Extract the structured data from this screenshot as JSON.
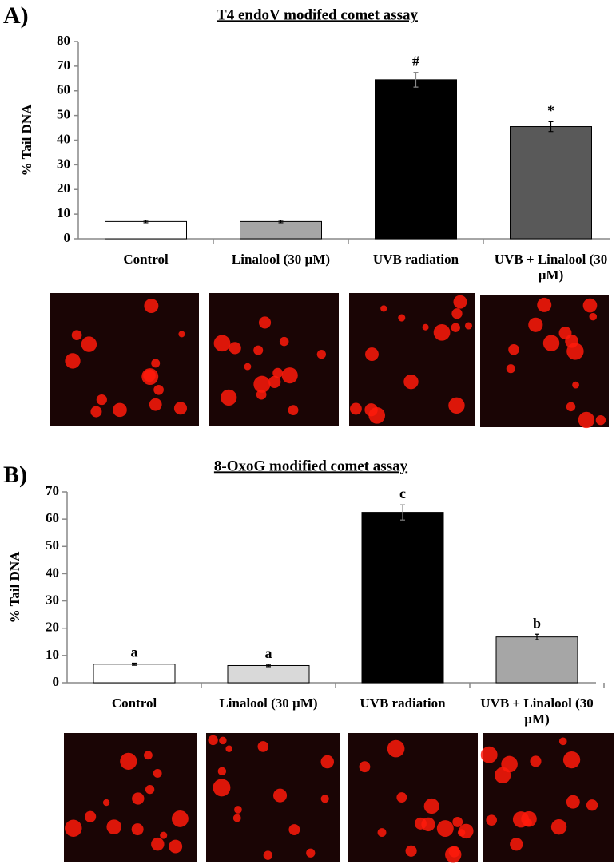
{
  "chart_data": [
    {
      "type": "bar",
      "panel_label": "A)",
      "title": "T4 endoV modifed comet assay",
      "ylabel": "% Tail DNA",
      "categories": [
        "Control",
        "Linalool (30 µM)",
        "UVB radiation",
        "UVB + Linalool (30 µM)"
      ],
      "values": [
        7,
        7,
        64.5,
        45.5
      ],
      "errors": [
        0.5,
        0.5,
        3,
        2
      ],
      "bar_annotations": [
        null,
        null,
        "#",
        "*"
      ],
      "colors": [
        "#ffffff",
        "#a6a6a6",
        "#000000",
        "#595959"
      ],
      "ylim": [
        0,
        80
      ],
      "yticks": [
        0,
        10,
        20,
        30,
        40,
        50,
        60,
        70,
        80
      ]
    },
    {
      "type": "bar",
      "panel_label": "B)",
      "title": "8-OxoG modified comet assay",
      "ylabel": "% Tail DNA",
      "categories": [
        "Control",
        "Linalool (30 µM)",
        "UVB radiation",
        "UVB + Linalool (30 µM)"
      ],
      "values": [
        6.8,
        6.3,
        62.5,
        16.8
      ],
      "errors": [
        0.4,
        0.4,
        2.8,
        1
      ],
      "bar_annotations": [
        "a",
        "a",
        "c",
        "b"
      ],
      "colors": [
        "#ffffff",
        "#d9d9d9",
        "#000000",
        "#a6a6a6"
      ],
      "ylim": [
        0,
        70
      ],
      "yticks": [
        0,
        10,
        20,
        30,
        40,
        50,
        60,
        70
      ]
    }
  ]
}
